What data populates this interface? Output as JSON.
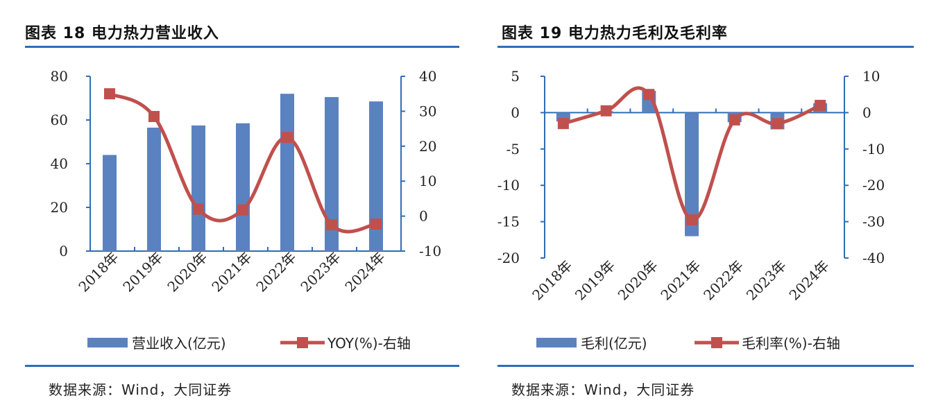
{
  "colors": {
    "bar": "#5b82c0",
    "line": "#c0504d",
    "axis": "#2f6db5",
    "rule": "#2f6db5"
  },
  "charts": [
    {
      "title": "图表 18  电力热力营业收入",
      "source": "数据来源：Wind，大同证券",
      "chart_data": {
        "type": "bar",
        "categories": [
          "2018年",
          "2019年",
          "2020年",
          "2021年",
          "2022年",
          "2023年",
          "2024年"
        ],
        "series": [
          {
            "name": "营业收入(亿元)",
            "type": "bar",
            "axis": "left",
            "values": [
              44,
              56.5,
              57.5,
              58.5,
              72,
              70.5,
              68.5
            ]
          },
          {
            "name": "YOY(%)-右轴",
            "type": "line",
            "axis": "right",
            "values": [
              35,
              28.5,
              2,
              1.8,
              22.5,
              -2.5,
              -2.3
            ]
          }
        ],
        "left_axis": {
          "min": 0,
          "max": 80,
          "ticks": [
            "80",
            "60",
            "40",
            "20",
            "0"
          ]
        },
        "right_axis": {
          "min": -10,
          "max": 40,
          "ticks": [
            "40",
            "30",
            "20",
            "10",
            "0",
            "-10"
          ]
        },
        "legend": "bottom"
      }
    },
    {
      "title": "图表 19  电力热力毛利及毛利率",
      "source": "数据来源：Wind，大同证券",
      "chart_data": {
        "type": "bar",
        "categories": [
          "2018年",
          "2019年",
          "2020年",
          "2021年",
          "2022年",
          "2023年",
          "2024年"
        ],
        "series": [
          {
            "name": "毛利(亿元)",
            "type": "bar",
            "axis": "left",
            "values": [
              -1.2,
              0.2,
              3,
              -17,
              -1.3,
              -2.3,
              1.3
            ]
          },
          {
            "name": "毛利率(%)-右轴",
            "type": "line",
            "axis": "right",
            "values": [
              -3,
              0.5,
              5,
              -29.5,
              -2,
              -3,
              2
            ]
          }
        ],
        "left_axis": {
          "min": -20,
          "max": 5,
          "ticks": [
            "5",
            "0",
            "-5",
            "-10",
            "-15",
            "-20"
          ]
        },
        "right_axis": {
          "min": -40,
          "max": 10,
          "ticks": [
            "10",
            "0",
            "-10",
            "-20",
            "-30",
            "-40"
          ]
        },
        "legend": "bottom"
      }
    }
  ]
}
